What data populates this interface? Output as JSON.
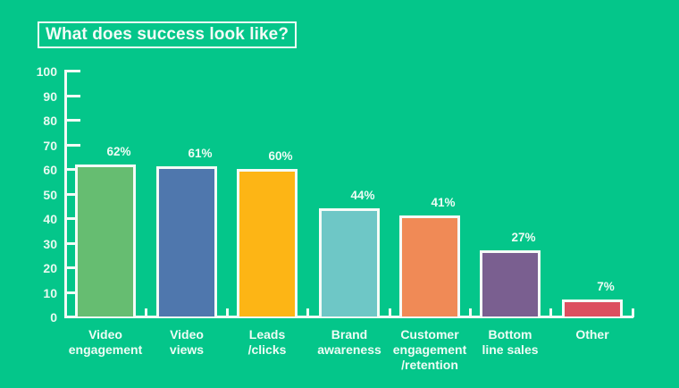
{
  "title": "What does success look like?",
  "y_axis": {
    "ticks": [
      "100",
      "90",
      "80",
      "70",
      "60",
      "50",
      "40",
      "30",
      "20",
      "10",
      "0"
    ]
  },
  "bars": [
    {
      "category": "Video\nengagement",
      "value": 62,
      "label": "62%",
      "color": "#66bd71"
    },
    {
      "category": "Video\nviews",
      "value": 61,
      "label": "61%",
      "color": "#4f77ad"
    },
    {
      "category": "Leads\n/clicks",
      "value": 60,
      "label": "60%",
      "color": "#fdb515"
    },
    {
      "category": "Brand\nawareness",
      "value": 44,
      "label": "44%",
      "color": "#6ec7c6"
    },
    {
      "category": "Customer\nengagement\n/retention",
      "value": 41,
      "label": "41%",
      "color": "#f08a56"
    },
    {
      "category": "Bottom\nline sales",
      "value": 27,
      "label": "27%",
      "color": "#7a5f90"
    },
    {
      "category": "Other",
      "value": 7,
      "label": "7%",
      "color": "#dc4f60"
    }
  ],
  "colors": {
    "background": "#04c68a",
    "axis": "#f2fbf6",
    "text": "#eefcf5"
  },
  "chart_data": {
    "type": "bar",
    "title": "What does success look like?",
    "categories": [
      "Video engagement",
      "Video views",
      "Leads/clicks",
      "Brand awareness",
      "Customer engagement/retention",
      "Bottom line sales",
      "Other"
    ],
    "values": [
      62,
      61,
      60,
      44,
      41,
      27,
      7
    ],
    "data_labels": [
      "62%",
      "61%",
      "60%",
      "44%",
      "41%",
      "27%",
      "7%"
    ],
    "xlabel": "",
    "ylabel": "",
    "ylim": [
      0,
      100
    ],
    "yticks": [
      0,
      10,
      20,
      30,
      40,
      50,
      60,
      70,
      80,
      90,
      100
    ],
    "grid": false,
    "legend": "none"
  }
}
